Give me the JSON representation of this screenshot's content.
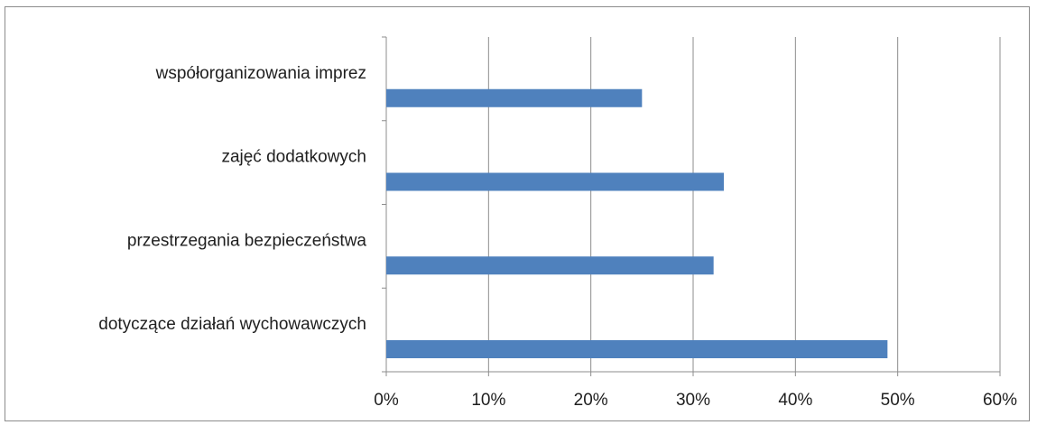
{
  "chart_data": {
    "type": "bar",
    "orientation": "horizontal",
    "categories": [
      "współorganizowania imprez",
      "zajęć dodatkowych",
      "przestrzegania bezpieczeństwa",
      "dotyczące działań wychowawczych"
    ],
    "values": [
      25,
      33,
      32,
      49
    ],
    "value_unit": "%",
    "xlim": [
      0,
      60
    ],
    "x_ticks": [
      "0%",
      "10%",
      "20%",
      "30%",
      "40%",
      "50%",
      "60%"
    ],
    "grid": "vertical",
    "legend": "none",
    "title": "",
    "xlabel": "",
    "ylabel": "",
    "bar_color": "#4f81bd",
    "grid_color": "#8c8c8c"
  }
}
